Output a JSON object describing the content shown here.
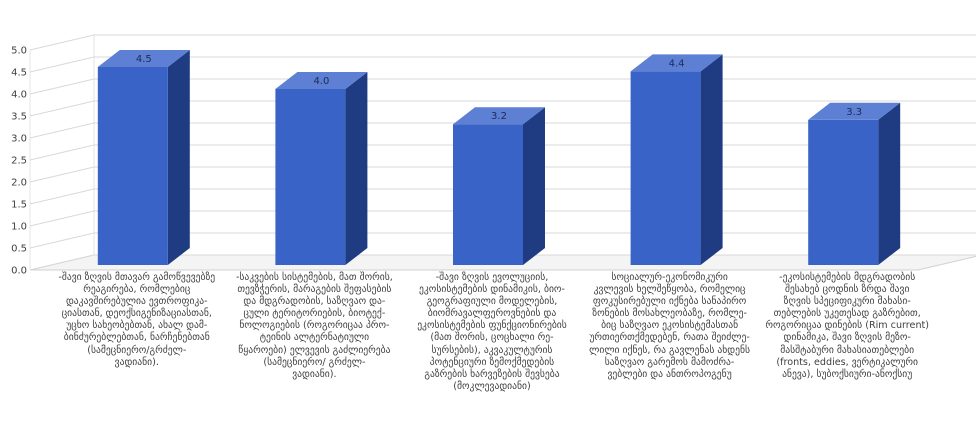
{
  "chart_data": {
    "type": "bar",
    "style": "3d-column",
    "title": "",
    "xlabel": "",
    "ylabel": "",
    "ylim": [
      0,
      5.0
    ],
    "yticks": [
      "0.0",
      "0.5",
      "1.0",
      "1.5",
      "2.0",
      "2.5",
      "3.0",
      "3.5",
      "4.0",
      "4.5",
      "5.0"
    ],
    "grid": true,
    "legend": "none",
    "data_labels": [
      "4.5",
      "4.0",
      "3.2",
      "4.4",
      "3.3"
    ],
    "values": [
      4.5,
      4.0,
      3.2,
      4.4,
      3.3
    ],
    "categories": [
      "-შავი ზღვის მთავარ გამოწვევებზე\nრეაგირება, რომლებიც\nდაკავშირებულია ევთროფიკა-\nციასთან, დეოქსიგენიზაციასთან,\nუცხო სახეობებთან, ახალ დამ-\nბინძურებლებთან, ნარჩენებთან\n(სამეცნიერო/გრძელ-\nვადიანი).",
      "-საკვების სისტემების, მათ შორის,\nთევზჭერის, მარაგების შეფასების\nდა მდგრადობის, საზღვაო და-\nცული ტერიტორიების, ბიოტექ-\nნოლოგიების (როგორიცაა პრო-\nტეინის ალტერნატიული\nწყაროები) ელვევის გაძლიერება\n(სამეცნიერო/ გრძელ-\nვადიანი).",
      "-შავი ზღვის ევოლუციის,\nეკოსისტემების დინამიკის, ბიო-\nგეოგრაფიული მოდელების,\nბიომრავალფეროვნების და\nეკოსისტემების ფუნქციონირების\n(მათ შორის, ცოცხალი რე-\nსურსების), აკვაკულტურის\nპოტენციური ზემოქმედების\nგაზრების ხარვეზების შევსება\n(მოკლევადიანი)",
      "სოციალურ-ეკონომიკური\nკვლევის ხელშეწყობა, რომელიც\nფოკუსირებული იქნება სანაპირო\nზონების მოსახლეობაზე, რომლე-\nბიც საზღვაო ეკოსისტემასთან\nურთიერთქმედებენ, რათა შეიძლე-\nლილი იქნეს, რა გავლენას ახდენს\nსაზღვაო გარემოს მამოძრა-\nვებლები და ანთროპოგენუ",
      "-ეკოსისტემების მდგრადობის\nშესახებ ცოდნის ზრდა შავი\nზღვის სპეციფიკური მახასი-\nთებლების უკეთესად გაზრებით,\nროგორიცაა დინების (Rim current)\nდინამიკა, შავი ზღვის მეზო-\nმასშტაბური მახასიათებლები\n(fronts, eddies, ვერტიკალური\nანევა), სუბოქსიური-ანოქსიუ"
    ],
    "colors": {
      "bar_front": "#3a63c8",
      "bar_side": "#1f3c82",
      "bar_top": "#5d7fd4",
      "grid": "#d9d9d9",
      "axis_text": "#404040"
    }
  }
}
